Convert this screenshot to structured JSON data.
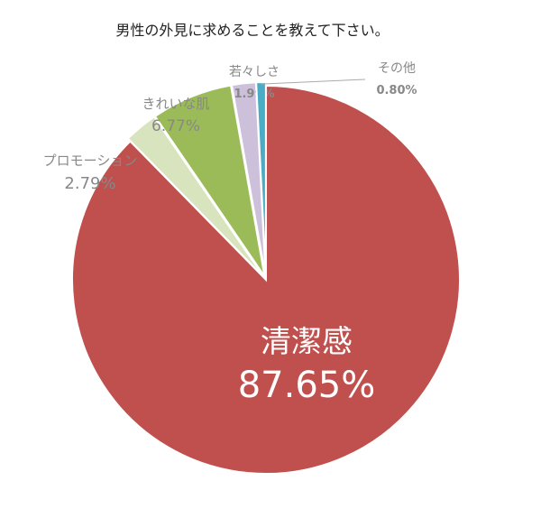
{
  "chart_data": {
    "type": "pie",
    "title": "男性の外見に求めることを教えて下さい。",
    "start": "top",
    "direction": "clockwise",
    "slices": [
      {
        "label": "清潔感",
        "value": 87.65,
        "display": "87.65%",
        "color": "#c0504d"
      },
      {
        "label": "プロモーション",
        "value": 2.79,
        "display": "2.79%",
        "color": "#d7e4bd"
      },
      {
        "label": "きれいな肌",
        "value": 6.77,
        "display": "6.77%",
        "color": "#9bbb59"
      },
      {
        "label": "若々しさ",
        "value": 1.99,
        "display": "1.99%",
        "color": "#ccc0da"
      },
      {
        "label": "その他",
        "value": 0.8,
        "display": "0.80%",
        "color": "#4bacc6"
      }
    ]
  }
}
